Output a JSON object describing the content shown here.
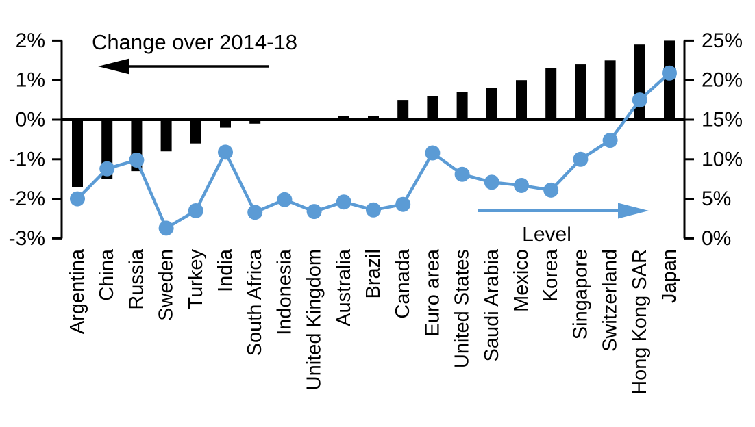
{
  "chart_data": {
    "type": "bar",
    "subtype": "dual-axis bar + line",
    "categories": [
      "Argentina",
      "China",
      "Russia",
      "Sweden",
      "Turkey",
      "India",
      "South Africa",
      "Indonesia",
      "United Kingdom",
      "Australia",
      "Brazil",
      "Canada",
      "Euro area",
      "United States",
      "Saudi Arabia",
      "Mexico",
      "Korea",
      "Singapore",
      "Switzerland",
      "Hong Kong SAR",
      "Japan"
    ],
    "series": [
      {
        "name": "Change over 2014-18",
        "type": "bar",
        "axis": "left",
        "color": "#000000",
        "values": [
          -1.7,
          -1.5,
          -1.3,
          -0.8,
          -0.6,
          -0.2,
          -0.1,
          0.0,
          0.0,
          0.1,
          0.1,
          0.5,
          0.6,
          0.7,
          0.8,
          1.0,
          1.3,
          1.4,
          1.5,
          1.9,
          2.0
        ]
      },
      {
        "name": "Level",
        "type": "line",
        "axis": "right",
        "color": "#5B9BD5",
        "values": [
          5.0,
          8.8,
          9.9,
          1.3,
          3.5,
          10.9,
          3.3,
          4.9,
          3.4,
          4.6,
          3.6,
          4.3,
          10.8,
          8.1,
          7.1,
          6.7,
          6.1,
          10.0,
          12.4,
          17.5,
          20.9
        ]
      }
    ],
    "left_axis": {
      "range": [
        -3,
        2
      ],
      "tick_values": [
        2,
        1,
        0,
        -1,
        -2,
        -3
      ],
      "tick_labels": [
        "2%",
        "1%",
        "0%",
        "-1%",
        "-2%",
        "-3%"
      ]
    },
    "right_axis": {
      "range": [
        0,
        25
      ],
      "tick_values": [
        25,
        20,
        15,
        10,
        5,
        0
      ],
      "tick_labels": [
        "25%",
        "20%",
        "15%",
        "10%",
        "5%",
        "0%"
      ]
    },
    "annotations": {
      "bar_series_label": "Change over 2014-18",
      "line_series_label": "Level"
    },
    "grid": false,
    "legend_position": "in-plot arrow annotations"
  },
  "colors": {
    "bar": "#000000",
    "line": "#5B9BD5",
    "axis": "#000000",
    "background": "#FFFFFF"
  }
}
